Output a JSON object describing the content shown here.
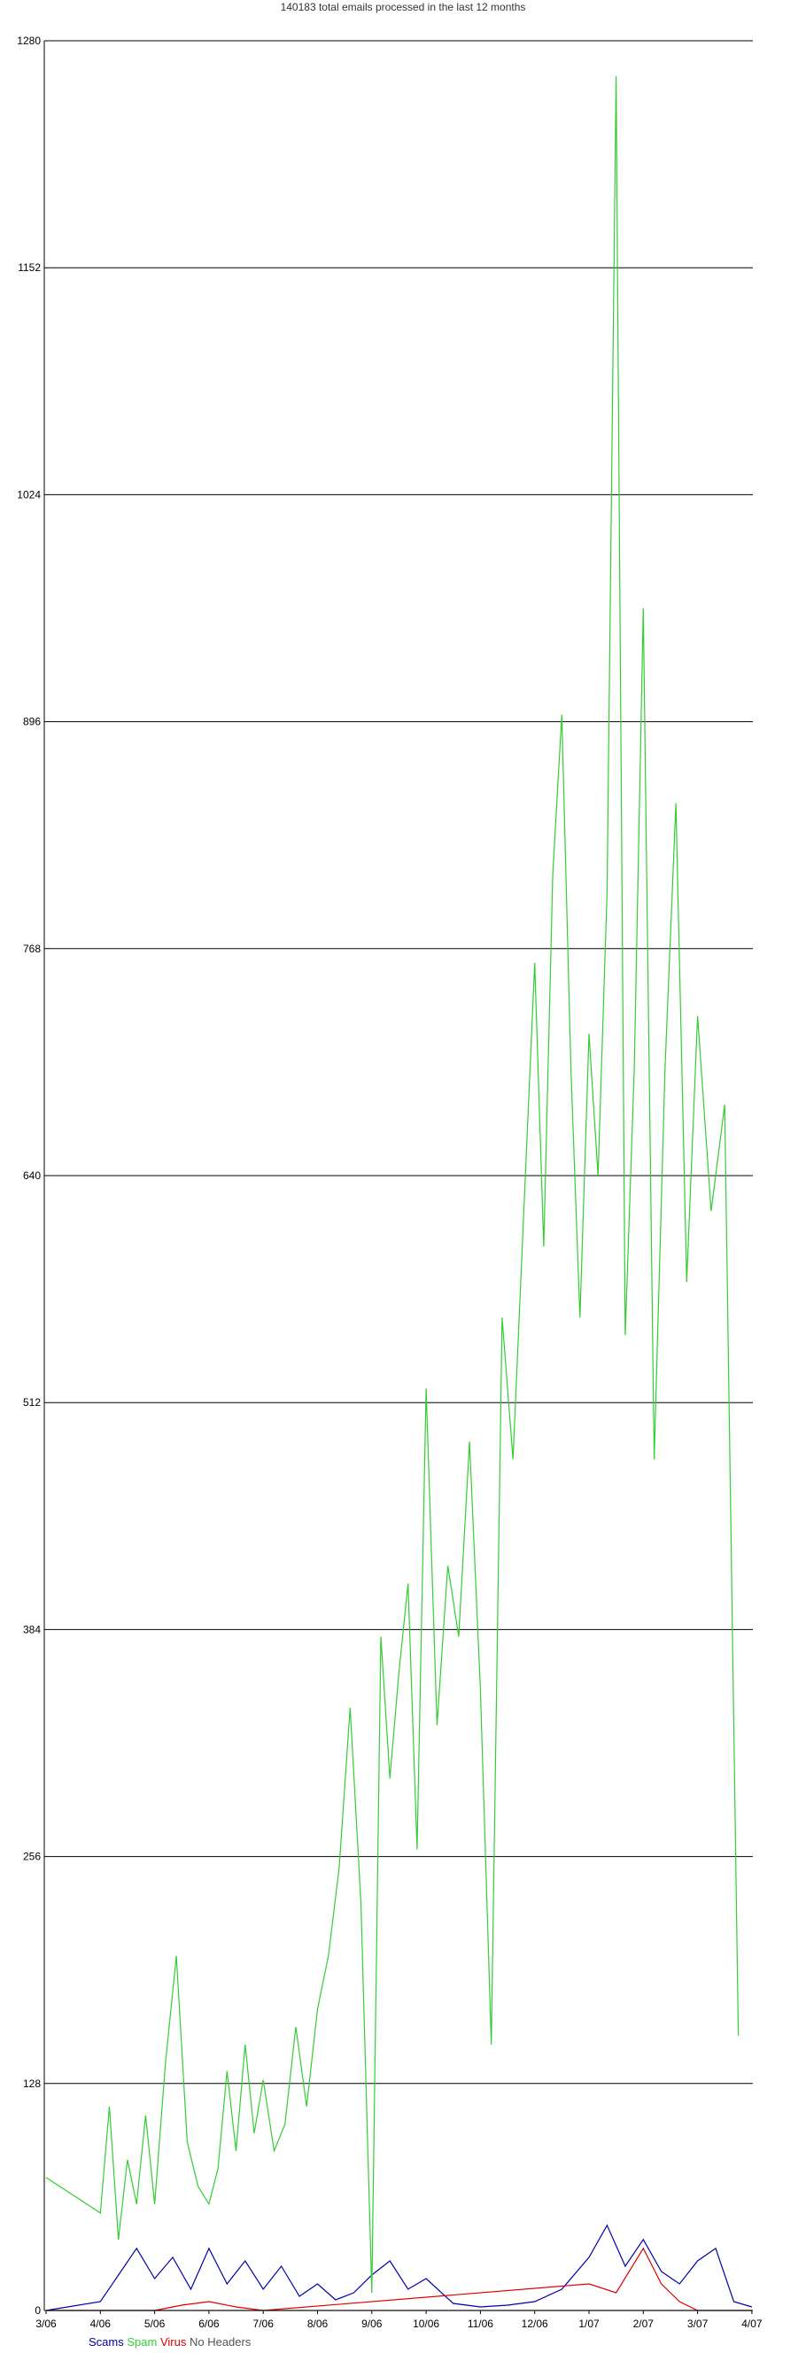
{
  "chart_data": {
    "type": "line",
    "title": "140183 total emails processed in the last 12 months",
    "xlabel": "",
    "ylabel": "",
    "ylim": [
      0,
      1280
    ],
    "yticks": [
      0,
      128,
      256,
      384,
      512,
      640,
      768,
      896,
      1024,
      1152,
      1280
    ],
    "xticks": [
      "3/06",
      "4/06",
      "5/06",
      "6/06",
      "7/06",
      "8/06",
      "9/06",
      "10/06",
      "11/06",
      "12/06",
      "1/07",
      "2/07",
      "3/07",
      "4/07"
    ],
    "xrange": [
      "3/06",
      "4/07"
    ],
    "grid": "horizontal",
    "legend_position": "bottom-left",
    "series": [
      {
        "name": "Scams",
        "color": "#0000aa",
        "points": [
          [
            "3/06",
            0
          ],
          [
            "4/06",
            5
          ],
          [
            "4/06",
            20
          ],
          [
            "4/06",
            35
          ],
          [
            "5/06",
            18
          ],
          [
            "5/06",
            30
          ],
          [
            "5/06",
            12
          ],
          [
            "6/06",
            35
          ],
          [
            "6/06",
            15
          ],
          [
            "6/06",
            28
          ],
          [
            "7/06",
            12
          ],
          [
            "7/06",
            25
          ],
          [
            "7/06",
            8
          ],
          [
            "8/06",
            15
          ],
          [
            "8/06",
            6
          ],
          [
            "8/06",
            10
          ],
          [
            "9/06",
            20
          ],
          [
            "9/06",
            28
          ],
          [
            "9/06",
            12
          ],
          [
            "10/06",
            18
          ],
          [
            "10/06",
            4
          ],
          [
            "11/06",
            2
          ],
          [
            "11/06",
            3
          ],
          [
            "12/06",
            5
          ],
          [
            "12/06",
            12
          ],
          [
            "1/07",
            30
          ],
          [
            "1/07",
            48
          ],
          [
            "1/07",
            25
          ],
          [
            "2/07",
            40
          ],
          [
            "2/07",
            22
          ],
          [
            "2/07",
            15
          ],
          [
            "3/07",
            28
          ],
          [
            "3/07",
            35
          ],
          [
            "3/07",
            5
          ],
          [
            "4/07",
            2
          ]
        ]
      },
      {
        "name": "Spam",
        "color": "#33cc33",
        "points": [
          [
            "3/06",
            75
          ],
          [
            "4/06",
            55
          ],
          [
            "4/06",
            115
          ],
          [
            "4/06",
            40
          ],
          [
            "4/06",
            85
          ],
          [
            "4/06",
            60
          ],
          [
            "4/06",
            110
          ],
          [
            "5/06",
            60
          ],
          [
            "5/06",
            140
          ],
          [
            "5/06",
            200
          ],
          [
            "5/06",
            95
          ],
          [
            "5/06",
            70
          ],
          [
            "6/06",
            60
          ],
          [
            "6/06",
            80
          ],
          [
            "6/06",
            135
          ],
          [
            "6/06",
            90
          ],
          [
            "6/06",
            150
          ],
          [
            "6/06",
            100
          ],
          [
            "7/06",
            130
          ],
          [
            "7/06",
            90
          ],
          [
            "7/06",
            105
          ],
          [
            "7/06",
            160
          ],
          [
            "7/06",
            115
          ],
          [
            "8/06",
            170
          ],
          [
            "8/06",
            200
          ],
          [
            "8/06",
            250
          ],
          [
            "8/06",
            340
          ],
          [
            "8/06",
            230
          ],
          [
            "9/06",
            10
          ],
          [
            "9/06",
            380
          ],
          [
            "9/06",
            300
          ],
          [
            "9/06",
            360
          ],
          [
            "9/06",
            410
          ],
          [
            "9/06",
            260
          ],
          [
            "10/06",
            520
          ],
          [
            "10/06",
            330
          ],
          [
            "10/06",
            420
          ],
          [
            "10/06",
            380
          ],
          [
            "10/06",
            490
          ],
          [
            "11/06",
            350
          ],
          [
            "11/06",
            150
          ],
          [
            "11/06",
            560
          ],
          [
            "11/06",
            480
          ],
          [
            "11/06",
            620
          ],
          [
            "12/06",
            760
          ],
          [
            "12/06",
            600
          ],
          [
            "12/06",
            810
          ],
          [
            "12/06",
            900
          ],
          [
            "12/06",
            700
          ],
          [
            "12/06",
            560
          ],
          [
            "1/07",
            720
          ],
          [
            "1/07",
            640
          ],
          [
            "1/07",
            800
          ],
          [
            "1/07",
            1260
          ],
          [
            "1/07",
            550
          ],
          [
            "1/07",
            700
          ],
          [
            "2/07",
            960
          ],
          [
            "2/07",
            480
          ],
          [
            "2/07",
            700
          ],
          [
            "2/07",
            850
          ],
          [
            "2/07",
            580
          ],
          [
            "3/07",
            730
          ],
          [
            "3/07",
            620
          ],
          [
            "3/07",
            680
          ],
          [
            "3/07",
            155
          ]
        ]
      },
      {
        "name": "Virus",
        "color": "#dd0000",
        "points": [
          [
            "3/06",
            0
          ],
          [
            "5/06",
            0
          ],
          [
            "5/06",
            3
          ],
          [
            "6/06",
            5
          ],
          [
            "6/06",
            2
          ],
          [
            "7/06",
            0
          ],
          [
            "1/07",
            15
          ],
          [
            "1/07",
            10
          ],
          [
            "2/07",
            35
          ],
          [
            "2/07",
            15
          ],
          [
            "2/07",
            5
          ],
          [
            "3/07",
            0
          ],
          [
            "4/07",
            0
          ]
        ]
      },
      {
        "name": "No Headers",
        "color": "#555555",
        "points": [
          [
            "3/06",
            0
          ],
          [
            "4/07",
            0
          ]
        ]
      }
    ]
  }
}
